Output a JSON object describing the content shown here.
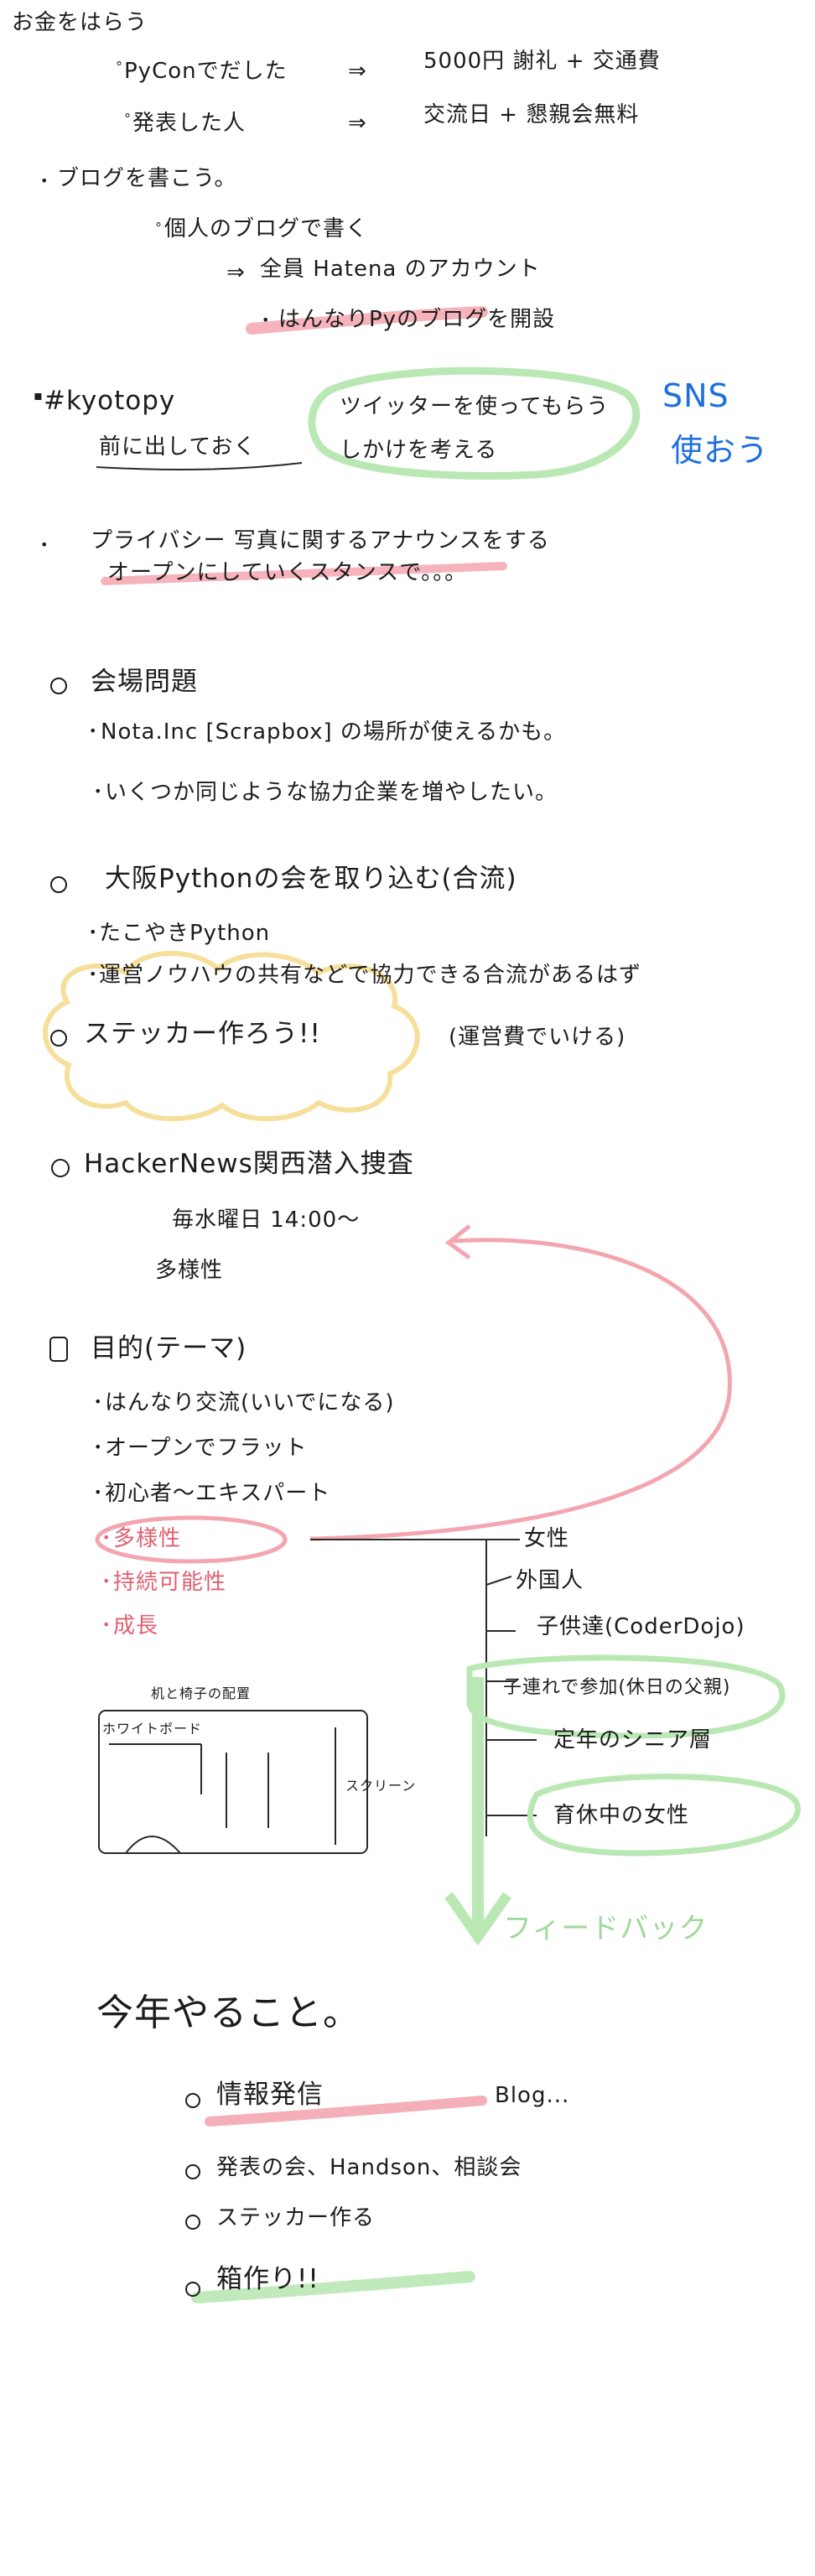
{
  "notes": {
    "money": "お金をはらう",
    "pycon": "PyConでだした",
    "pycon_result": "5000円 謝礼 + 交通費",
    "speaker": "発表した人",
    "speaker_result": "交流日 + 懇親会無料",
    "blog": "ブログを書こう。",
    "blog_personal": "個人のブログで書く",
    "blog_hatena": "全員 Hatena のアカウント",
    "blog_hannari": "はんなりPyのブログを開設",
    "kyotopy": "#kyotopy",
    "kyotopy_sub": "前に出しておく",
    "twitter": "ツイッターを使ってもらう",
    "twitter_sub": "しかけを考える",
    "sns": "SNS",
    "sns_sub": "使おう",
    "privacy": "プライバシー 写真に関するアナウンスをする",
    "privacy_sub": "オープンにしていくスタンスで。。。",
    "venue": "会場問題",
    "venue_nota": "Nota.Inc [Scrapbox] の場所が使えるかも。",
    "venue_more": "いくつか同じような協力企業を増やしたい。",
    "osaka": "大阪Pythonの会を取り込む(合流)",
    "takoyaki": "たこやきPython",
    "osaka_share": "運営ノウハウの共有などで協力できる合流があるはず",
    "sticker": "ステッカー作ろう!!",
    "sticker_note": "(運営費でいける)",
    "hn": "HackerNews関西潜入捜査",
    "hn_day": "毎水曜日 14:00〜",
    "hn_div": "多様性",
    "purpose": "目的(テーマ)",
    "purpose_1": "はんなり交流(いいでになる)",
    "purpose_2": "オープンでフラット",
    "purpose_3": "初心者〜エキスパート",
    "purpose_4": "多様性",
    "purpose_5": "持続可能性",
    "purpose_6": "成長",
    "div_women": "女性",
    "div_foreign": "外国人",
    "div_kids": "子供達(CoderDojo)",
    "div_kids_parents": "子連れで参加(休日の父親)",
    "div_senior": "定年のシニア層",
    "div_childcare": "育休中の女性",
    "feedback": "フィードバック",
    "sketch_board": "ホワイトボード",
    "sketch_table": "机と椅子の配置",
    "sketch_screen": "スクリーン",
    "year": "今年やること。",
    "year_1": "情報発信",
    "year_1b": "Blog...",
    "year_2": "発表の会、Handson、相談会",
    "year_3": "ステッカー作る",
    "year_4": "箱作り!!"
  },
  "colors": {
    "ink": "#1c1c1c",
    "red_highlight": "#f4a6b0",
    "green_highlight": "#b9e8b4",
    "yellow_highlight": "#f6df9a",
    "blue_ink": "#1f6fe0",
    "red_ink": "#e06070"
  }
}
